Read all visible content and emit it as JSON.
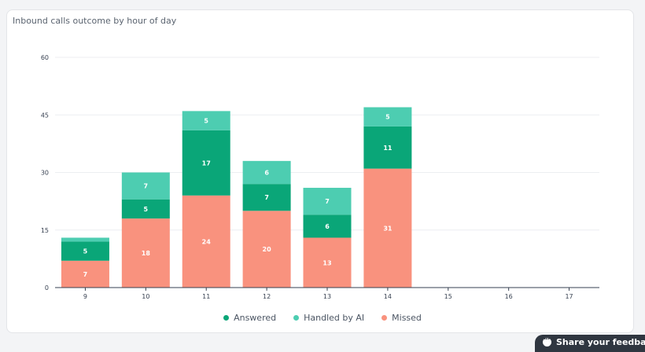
{
  "chart_data": {
    "type": "bar",
    "stacked": true,
    "title": "Inbound calls outcome by hour of day",
    "xlabel": "",
    "ylabel": "",
    "ylim": [
      0,
      60
    ],
    "yticks": [
      0,
      15,
      30,
      45,
      60
    ],
    "grid": true,
    "legend_position": "bottom",
    "categories": [
      "9",
      "10",
      "11",
      "12",
      "13",
      "14",
      "15",
      "16",
      "17"
    ],
    "series": [
      {
        "name": "Missed",
        "color": "#f9927e",
        "values": [
          7,
          18,
          24,
          20,
          13,
          31,
          0,
          0,
          0
        ]
      },
      {
        "name": "Answered",
        "color": "#0aa678",
        "values": [
          5,
          5,
          17,
          7,
          6,
          11,
          0,
          0,
          0
        ]
      },
      {
        "name": "Handled by AI",
        "color": "#4dcdb1",
        "values": [
          1,
          7,
          5,
          6,
          7,
          5,
          0,
          0,
          0
        ]
      }
    ],
    "legend_order": [
      "Answered",
      "Handled by AI",
      "Missed"
    ]
  },
  "legend": [
    {
      "label": "Answered",
      "color": "#0aa678"
    },
    {
      "label": "Handled by AI",
      "color": "#4dcdb1"
    },
    {
      "label": "Missed",
      "color": "#f9927e"
    }
  ],
  "feedback": {
    "label": "Share your feedback"
  }
}
